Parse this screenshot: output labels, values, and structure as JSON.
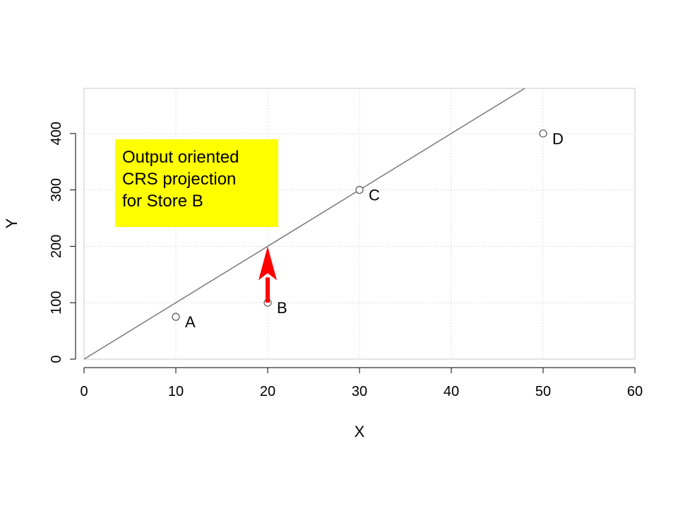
{
  "chart_data": {
    "type": "scatter",
    "xlabel": "X",
    "ylabel": "Y",
    "xlim": [
      0,
      60
    ],
    "ylim": [
      0,
      480
    ],
    "x_ticks": [
      0,
      10,
      20,
      30,
      40,
      50,
      60
    ],
    "y_ticks": [
      0,
      100,
      200,
      300,
      400
    ],
    "grid": true,
    "points": [
      {
        "label": "A",
        "x": 10,
        "y": 75
      },
      {
        "label": "B",
        "x": 20,
        "y": 100
      },
      {
        "label": "C",
        "x": 30,
        "y": 300
      },
      {
        "label": "D",
        "x": 50,
        "y": 400
      }
    ],
    "frontier_line": {
      "slope": 10,
      "intercept": 0
    },
    "projection_arrow": {
      "x": 20,
      "from_y": 100,
      "to_y": 200,
      "color": "#ff0000"
    },
    "annotation": {
      "lines": [
        "Output oriented",
        "CRS projection",
        "for Store B"
      ],
      "background": "#ffff00"
    }
  }
}
